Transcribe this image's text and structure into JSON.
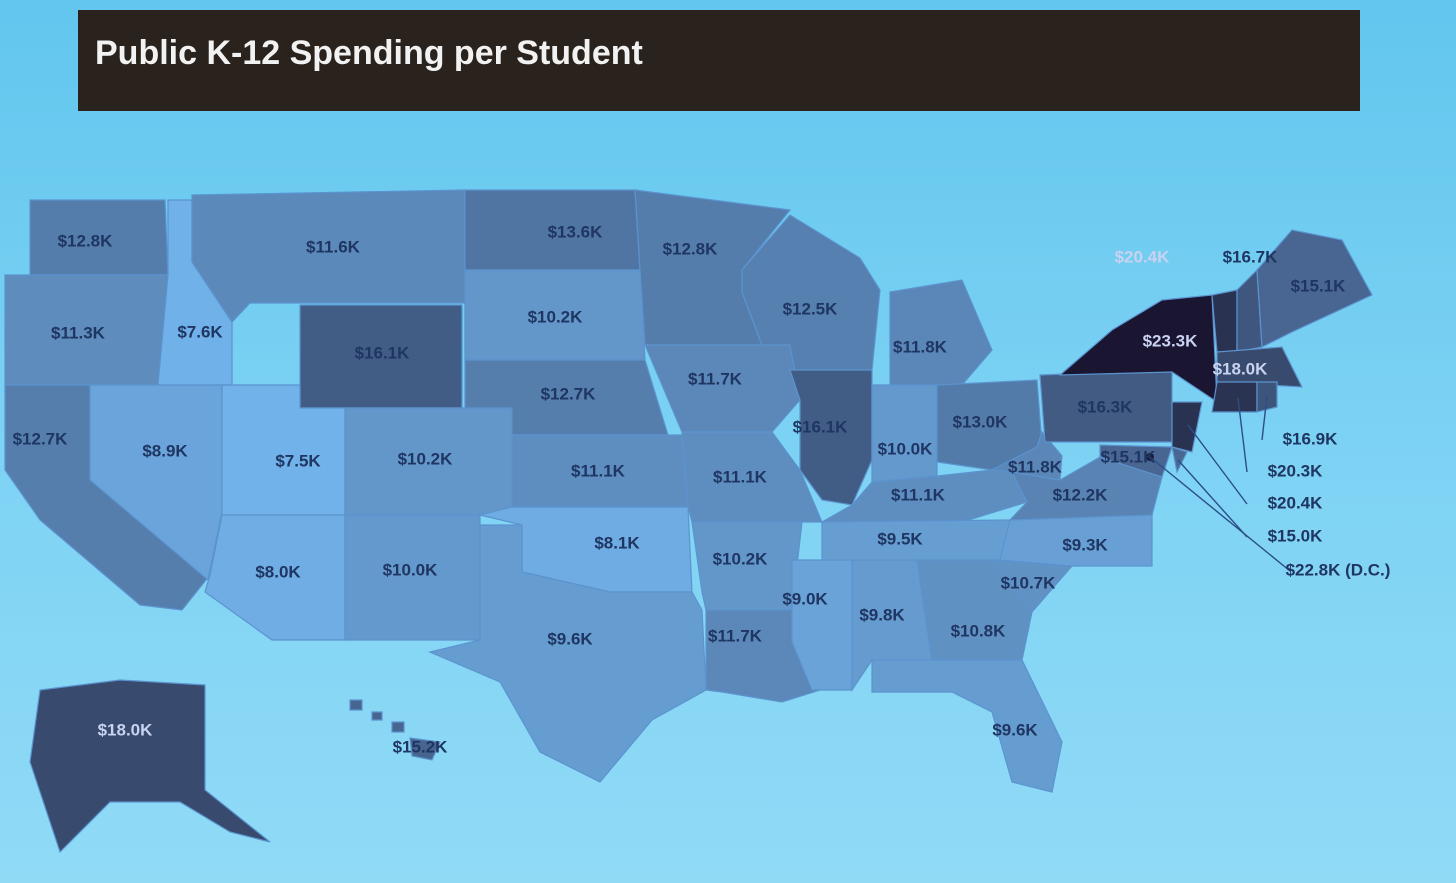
{
  "title": "Public K-12 Spending per Student",
  "regions": [
    {
      "label": "$12.8K",
      "value": 12.8
    },
    {
      "label": "$11.3K",
      "value": 11.3
    },
    {
      "label": "$12.7K",
      "value": 12.7
    },
    {
      "label": "$8.9K",
      "value": 8.9
    },
    {
      "label": "$7.6K",
      "value": 7.6
    },
    {
      "label": "$11.6K",
      "value": 11.6
    },
    {
      "label": "$16.1K",
      "value": 16.1
    },
    {
      "label": "$7.5K",
      "value": 7.5
    },
    {
      "label": "$10.2K",
      "value": 10.2
    },
    {
      "label": "$8.0K",
      "value": 8.0
    },
    {
      "label": "$10.0K",
      "value": 10.0
    },
    {
      "label": "$13.6K",
      "value": 13.6
    },
    {
      "label": "$10.2K",
      "value": 10.2
    },
    {
      "label": "$12.7K",
      "value": 12.7
    },
    {
      "label": "$11.1K",
      "value": 11.1
    },
    {
      "label": "$8.1K",
      "value": 8.1
    },
    {
      "label": "$9.6K",
      "value": 9.6
    },
    {
      "label": "$12.8K",
      "value": 12.8
    },
    {
      "label": "$12.5K",
      "value": 12.5
    },
    {
      "label": "$11.7K",
      "value": 11.7
    },
    {
      "label": "$11.1K",
      "value": 11.1
    },
    {
      "label": "$10.2K",
      "value": 10.2
    },
    {
      "label": "$11.7K",
      "value": 11.7
    },
    {
      "label": "$9.0K",
      "value": 9.0
    },
    {
      "label": "$9.8K",
      "value": 9.8
    },
    {
      "label": "$16.1K",
      "value": 16.1
    },
    {
      "label": "$10.0K",
      "value": 10.0
    },
    {
      "label": "$11.8K",
      "value": 11.8
    },
    {
      "label": "$13.0K",
      "value": 13.0
    },
    {
      "label": "$11.1K",
      "value": 11.1
    },
    {
      "label": "$9.5K",
      "value": 9.5
    },
    {
      "label": "$10.8K",
      "value": 10.8
    },
    {
      "label": "$9.6K",
      "value": 9.6
    },
    {
      "label": "$10.7K",
      "value": 10.7
    },
    {
      "label": "$9.3K",
      "value": 9.3
    },
    {
      "label": "$12.2K",
      "value": 12.2
    },
    {
      "label": "$11.8K",
      "value": 11.8
    },
    {
      "label": "$16.3K",
      "value": 16.3
    },
    {
      "label": "$23.3K",
      "value": 23.3
    },
    {
      "label": "$20.4K",
      "value": 20.4
    },
    {
      "label": "$15.1K",
      "value": 15.1
    },
    {
      "label": "$15.0K",
      "value": 15.0
    },
    {
      "label": "$20.4K",
      "value": 20.4
    },
    {
      "label": "$16.7K",
      "value": 16.7
    },
    {
      "label": "$15.1K",
      "value": 15.1
    },
    {
      "label": "$18.0K",
      "value": 18.0
    },
    {
      "label": "$20.3K",
      "value": 20.3
    },
    {
      "label": "$16.9K",
      "value": 16.9
    },
    {
      "label": "$22.8K (D.C.)",
      "value": 22.8
    },
    {
      "label": "$18.0K",
      "value": 18.0
    },
    {
      "label": "$15.2K",
      "value": 15.2
    }
  ]
}
